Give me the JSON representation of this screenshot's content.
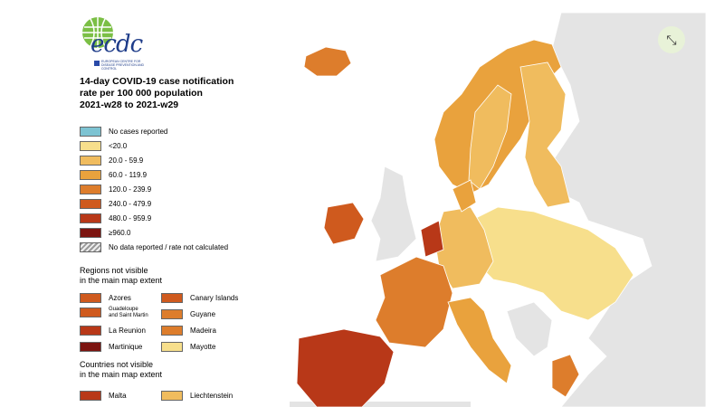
{
  "logo": {
    "word": "ecdc",
    "subtitle": "EUROPEAN CENTRE FOR DISEASE PREVENTION AND CONTROL"
  },
  "title_line1": "14-day COVID-19 case notification",
  "title_line2": "rate per 100 000 population",
  "title_line3": "2021-w28 to 2021-w29",
  "scale": [
    {
      "label": "No cases reported",
      "color": "#7dc3d2"
    },
    {
      "label": "<20.0",
      "color": "#f7df8c"
    },
    {
      "label": "20.0 - 59.9",
      "color": "#f0bc5e"
    },
    {
      "label": "60.0 - 119.9",
      "color": "#e9a23d"
    },
    {
      "label": "120.0 - 239.9",
      "color": "#dd7d2c"
    },
    {
      "label": "240.0 - 479.9",
      "color": "#cf5a1e"
    },
    {
      "label": "480.0 - 959.9",
      "color": "#b83818"
    },
    {
      "label": "≥960.0",
      "color": "#7c1410"
    },
    {
      "label": "No data reported / rate not calculated",
      "color": "hatch"
    }
  ],
  "regions_title_1": "Regions not visible",
  "regions_title_2": "in the main map extent",
  "regions": [
    {
      "label": "Azores",
      "color": "#cf5a1e"
    },
    {
      "label": "Canary Islands",
      "color": "#cf5a1e"
    },
    {
      "label": "Guadeloupe",
      "label2": "and Saint Martin",
      "color": "#cf5a1e"
    },
    {
      "label": "Guyane",
      "color": "#dd7d2c"
    },
    {
      "label": "La Reunion",
      "color": "#b83818"
    },
    {
      "label": "Madeira",
      "color": "#dd7d2c"
    },
    {
      "label": "Martinique",
      "color": "#7c1410"
    },
    {
      "label": "Mayotte",
      "color": "#f7df8c"
    }
  ],
  "countries_title_1": "Countries not visible",
  "countries_title_2": "in the main map extent",
  "countries": [
    {
      "label": "Malta",
      "color": "#b83818"
    },
    {
      "label": "Liechtenstein",
      "color": "#f0bc5e"
    }
  ],
  "expand_icon": "⤡"
}
